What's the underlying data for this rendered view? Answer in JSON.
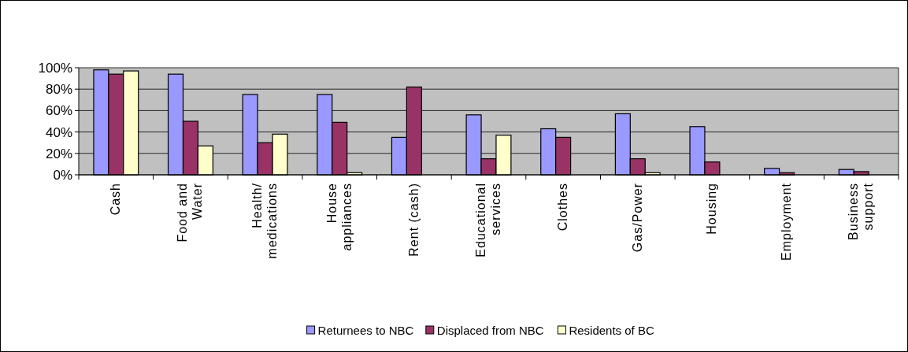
{
  "chart_data": {
    "type": "bar",
    "categories": [
      "Cash",
      "Food and\nWater",
      "Health/\nmedications",
      "House\nappliances",
      "Rent (cash)",
      "Educational\nservices",
      "Clothes",
      "Gas/Power",
      "Housing",
      "Employment",
      "Business\nsupport"
    ],
    "series": [
      {
        "name": "Returnees to NBC",
        "color": "#9999ff",
        "values": [
          98,
          94,
          75,
          75,
          35,
          56,
          43,
          57,
          45,
          6,
          5
        ]
      },
      {
        "name": "Displaced from NBC",
        "color": "#993366",
        "values": [
          94,
          50,
          30,
          49,
          82,
          15,
          35,
          15,
          12,
          2,
          3
        ]
      },
      {
        "name": "Residents of BC",
        "color": "#ffffcc",
        "values": [
          97,
          27,
          38,
          2,
          null,
          37,
          null,
          2,
          null,
          null,
          null
        ]
      }
    ],
    "ylim": [
      0,
      100
    ],
    "yticks": [
      {
        "value": 0,
        "label": "0%"
      },
      {
        "value": 20,
        "label": "20%"
      },
      {
        "value": 40,
        "label": "40%"
      },
      {
        "value": 60,
        "label": "60%"
      },
      {
        "value": 80,
        "label": "80%"
      },
      {
        "value": 100,
        "label": "100%"
      }
    ],
    "grid": "y",
    "legend": "bottom"
  }
}
